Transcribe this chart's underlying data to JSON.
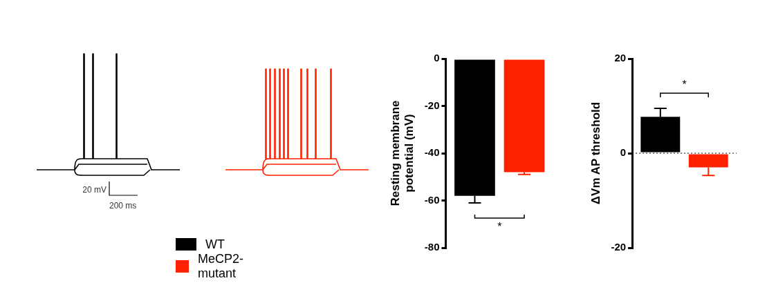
{
  "chart_data": [
    {
      "type": "other",
      "annotations": [
        "20 mV",
        "200 ms"
      ]
    },
    {
      "type": "bar",
      "categories": [
        null
      ],
      "ylabel": "Resting membrane potential (mV)",
      "ylim": [
        -80,
        0
      ],
      "yticks": [
        -80,
        -60,
        -40,
        -20,
        0
      ],
      "grid": false,
      "legend": "left",
      "annotations": [
        "*"
      ],
      "series": [
        {
          "name": "WT",
          "color": "#000000",
          "values": [
            -58
          ],
          "errors": [
            3
          ]
        },
        {
          "name": "MeCP2-mutant",
          "color": "#ff2200",
          "values": [
            -48
          ],
          "errors": [
            1
          ]
        }
      ]
    },
    {
      "type": "bar",
      "categories": [
        null
      ],
      "ylabel": "ΔVm AP threshold",
      "ylim": [
        -20,
        20
      ],
      "yticks": [
        -20,
        0,
        20
      ],
      "grid": false,
      "annotations": [
        "*"
      ],
      "ref_lines": [
        {
          "axis": "y",
          "value": 0,
          "line_style": "dotted",
          "color": "#000000"
        }
      ],
      "series": [
        {
          "color": "#000000",
          "values": [
            7.7
          ],
          "errors": [
            1.8
          ]
        },
        {
          "color": "#ff2200",
          "values": [
            -3
          ],
          "errors": [
            1.7
          ]
        }
      ]
    }
  ]
}
